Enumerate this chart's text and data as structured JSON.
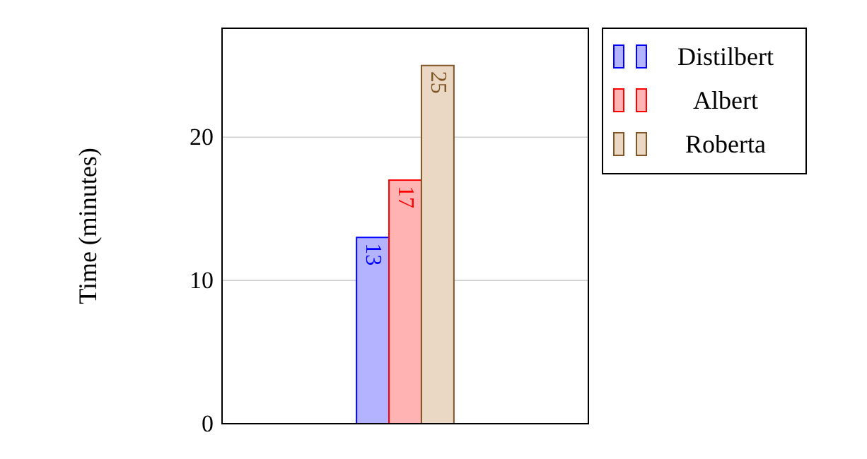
{
  "chart_data": {
    "type": "bar",
    "ylabel": "Time (minutes)",
    "categories": [
      null
    ],
    "series": [
      {
        "name": "Distilbert",
        "color": "#b3b3ff",
        "values": [
          13
        ]
      },
      {
        "name": "Albert",
        "color": "#ffb3b3",
        "values": [
          17
        ]
      },
      {
        "name": "Roberta",
        "color": "#ead8c4",
        "values": [
          25
        ]
      }
    ],
    "ylim": [
      0,
      27.6
    ],
    "yticks": [
      0,
      10,
      20
    ],
    "grid": "y",
    "legend": "top right",
    "data_labels": true
  }
}
